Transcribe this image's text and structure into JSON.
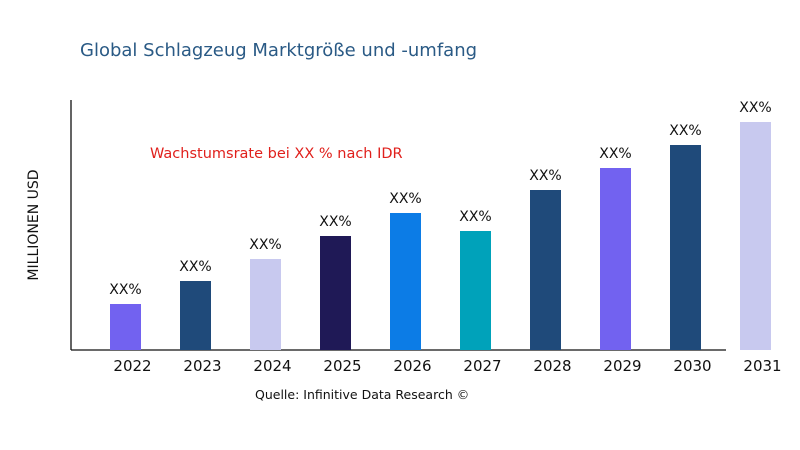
{
  "chart_data": {
    "type": "bar",
    "title": "Global Schlagzeug Marktgröße und -umfang",
    "ylabel": "MILLIONEN USD",
    "xlabel": "",
    "annotation": "Wachstumsrate bei XX % nach IDR",
    "source": "Quelle: Infinitive Data Research ©",
    "categories": [
      "2022",
      "2023",
      "2024",
      "2025",
      "2026",
      "2027",
      "2028",
      "2029",
      "2030",
      "2031"
    ],
    "values": [
      46,
      69,
      91,
      114,
      137,
      119,
      160,
      182,
      205,
      228
    ],
    "data_labels": [
      "XX%",
      "XX%",
      "XX%",
      "XX%",
      "XX%",
      "XX%",
      "XX%",
      "XX%",
      "XX%",
      "XX%"
    ],
    "colors": [
      "#7262f0",
      "#1f4a7a",
      "#c8c9ef",
      "#1f1956",
      "#0c7ce6",
      "#00a2ba",
      "#1f4a7a",
      "#7262f0",
      "#1f4a7a",
      "#c8c9ef"
    ],
    "ylim": [
      0,
      250
    ],
    "grid": false,
    "y_tick_labels_shown": false
  }
}
